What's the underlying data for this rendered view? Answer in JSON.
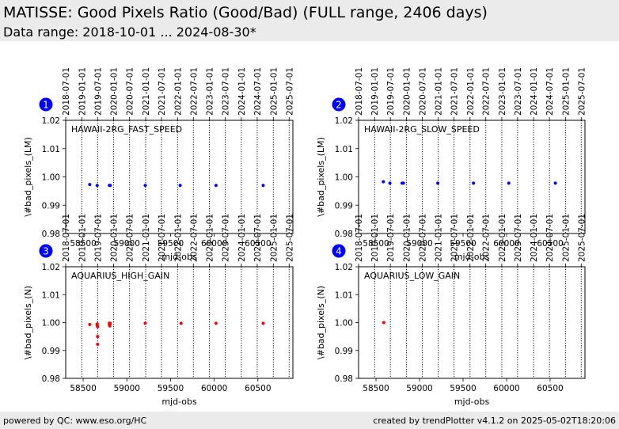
{
  "header": {
    "title": "MATISSE: Good Pixels Ratio (Good/Bad) (FULL range, 2406 days)",
    "subtitle": "Data range: 2018-10-01 ... 2024-08-30*"
  },
  "footer": {
    "left": "powered by QC: www.eso.org/HC",
    "right": "created by trendPlotter v4.1.2 on 2025-05-02T18:20:06"
  },
  "colors": {
    "fast_lm": "#0000ff",
    "high_n": "#ff0000",
    "badge": "#0000ff",
    "header_bg": "#ebebeb"
  },
  "chart_data": [
    {
      "type": "scatter",
      "panel": "1",
      "label": "HAWAII-2RG_FAST_SPEED",
      "xlabel": "mjd-obs",
      "ylabel": "\\#bad_pixels_(LM)",
      "xlim": [
        58300,
        60900
      ],
      "ylim": [
        0.98,
        1.02
      ],
      "xticks": [
        58500,
        59000,
        59500,
        60000,
        60500
      ],
      "yticks": [
        "0.98",
        "0.99",
        "1.00",
        "1.01",
        "1.02"
      ],
      "date_ticks": [
        "2018-07-01",
        "2019-01-01",
        "2019-07-01",
        "2020-01-01",
        "2020-07-01",
        "2021-01-01",
        "2021-07-01",
        "2022-01-01",
        "2022-07-01",
        "2023-01-01",
        "2023-07-01",
        "2024-01-01",
        "2024-07-01",
        "2025-01-01",
        "2025-07-01"
      ],
      "color": "#0000ff",
      "series": [
        {
          "x": [
            58575,
            58660,
            58800,
            58810,
            59210,
            59610,
            60020,
            60560
          ],
          "y": [
            0.9973,
            0.997,
            0.997,
            0.997,
            0.997,
            0.997,
            0.997,
            0.997
          ]
        }
      ]
    },
    {
      "type": "scatter",
      "panel": "2",
      "label": "HAWAII-2RG_SLOW_SPEED",
      "xlabel": "mjd-obs",
      "ylabel": "\\#bad_pixels_(LM)",
      "xlim": [
        58300,
        60900
      ],
      "ylim": [
        0.98,
        1.02
      ],
      "xticks": [
        58500,
        59000,
        59500,
        60000,
        60500
      ],
      "yticks": [
        "0.98",
        "0.99",
        "1.00",
        "1.01",
        "1.02"
      ],
      "date_ticks": [
        "2018-07-01",
        "2019-01-01",
        "2019-07-01",
        "2020-01-01",
        "2020-07-01",
        "2021-01-01",
        "2021-07-01",
        "2022-01-01",
        "2022-07-01",
        "2023-01-01",
        "2023-07-01",
        "2024-01-01",
        "2024-07-01",
        "2025-01-01",
        "2025-07-01"
      ],
      "color": "#0000ff",
      "series": [
        {
          "x": [
            58585,
            58660,
            58800,
            58815,
            59210,
            59620,
            60025,
            60560
          ],
          "y": [
            0.9983,
            0.9978,
            0.9978,
            0.9978,
            0.9978,
            0.9978,
            0.9978,
            0.9978
          ]
        }
      ]
    },
    {
      "type": "scatter",
      "panel": "3",
      "label": "AQUARIUS_HIGH_GAIN",
      "xlabel": "mjd-obs",
      "ylabel": "\\#bad_pixels_(N)",
      "xlim": [
        58300,
        60900
      ],
      "ylim": [
        0.98,
        1.02
      ],
      "xticks": [
        58500,
        59000,
        59500,
        60000,
        60500
      ],
      "yticks": [
        "0.98",
        "0.99",
        "1.00",
        "1.01",
        "1.02"
      ],
      "date_ticks": [
        "2018-07-01",
        "2019-01-01",
        "2019-07-01",
        "2020-01-01",
        "2020-07-01",
        "2021-01-01",
        "2021-07-01",
        "2022-01-01",
        "2022-07-01",
        "2023-01-01",
        "2023-07-01",
        "2024-01-01",
        "2024-07-01",
        "2025-01-01",
        "2025-07-01"
      ],
      "color": "#ff0000",
      "series": [
        {
          "x": [
            58575,
            58660,
            58660,
            58665,
            58665,
            58665,
            58800,
            58800,
            58805,
            58810,
            59210,
            59620,
            60020,
            60560
          ],
          "y": [
            0.9993,
            0.9995,
            0.999,
            0.9985,
            0.995,
            0.9922,
            0.9998,
            0.9993,
            0.9988,
            0.9997,
            0.9997,
            0.9997,
            0.9997,
            0.9997
          ]
        }
      ]
    },
    {
      "type": "scatter",
      "panel": "4",
      "label": "AQUARIUS_LOW_GAIN",
      "xlabel": "mjd-obs",
      "ylabel": "\\#bad_pixels_(N)",
      "xlim": [
        58300,
        60900
      ],
      "ylim": [
        0.98,
        1.02
      ],
      "xticks": [
        58500,
        59000,
        59500,
        60000,
        60500
      ],
      "yticks": [
        "0.98",
        "0.99",
        "1.00",
        "1.01",
        "1.02"
      ],
      "date_ticks": [
        "2018-07-01",
        "2019-01-01",
        "2019-07-01",
        "2020-01-01",
        "2020-07-01",
        "2021-01-01",
        "2021-07-01",
        "2022-01-01",
        "2022-07-01",
        "2023-01-01",
        "2023-07-01",
        "2024-01-01",
        "2024-07-01",
        "2025-01-01",
        "2025-07-01"
      ],
      "color": "#ff0000",
      "series": [
        {
          "x": [
            58590
          ],
          "y": [
            1.0
          ]
        }
      ]
    }
  ]
}
